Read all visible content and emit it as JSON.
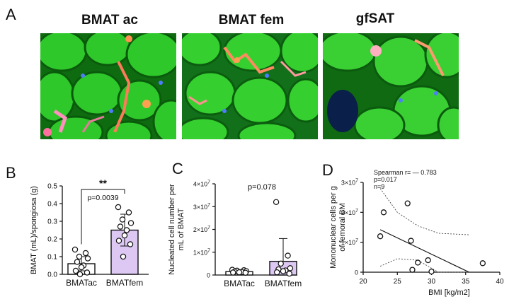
{
  "figure": {
    "panel_a": {
      "letter": "A",
      "images": [
        {
          "title": "BMAT ac"
        },
        {
          "title": "BMAT fem"
        },
        {
          "title": "gfSAT"
        }
      ]
    },
    "panel_b": {
      "letter": "B"
    },
    "panel_c": {
      "letter": "C"
    },
    "panel_d": {
      "letter": "D"
    }
  },
  "chart_data": [
    {
      "type": "bar",
      "panel": "B",
      "categories": [
        "BMATac",
        "BMATfem"
      ],
      "values": [
        0.06,
        0.25
      ],
      "error_sd": [
        0.04,
        0.09
      ],
      "points": [
        [
          0.14,
          0.12,
          0.1,
          0.09,
          0.07,
          0.05,
          0.04,
          0.02,
          0.01,
          0.0
        ],
        [
          0.38,
          0.35,
          0.31,
          0.29,
          0.27,
          0.25,
          0.22,
          0.19,
          0.17,
          0.1
        ]
      ],
      "ylabel": "BMAT (mL)/spongiosa (g)",
      "ylim": [
        0,
        0.5
      ],
      "yticks": [
        "0.0",
        "0.1",
        "0.2",
        "0.3",
        "0.4",
        "0.5"
      ],
      "annotation": "**",
      "pvalue": "p=0.0039",
      "colors": {
        "BMATac": "#ffffff",
        "BMATfem": "#dcc8f3"
      }
    },
    {
      "type": "bar",
      "panel": "C",
      "categories": [
        "BMATac",
        "BMATfem"
      ],
      "values": [
        1500000,
        6000000
      ],
      "error_sd": [
        600000,
        10000000
      ],
      "points": [
        [
          2300000,
          2100000,
          1900000,
          1700000,
          1500000,
          1300000,
          1200000,
          1100000,
          1000000
        ],
        [
          32000000,
          8500000,
          5000000,
          3000000,
          2500000,
          2000000,
          1700000,
          1200000,
          600000
        ]
      ],
      "ylabel": "Nucleated cell number per mL of BMAT",
      "ylim": [
        0,
        40000000
      ],
      "yticks": [
        "0",
        "1×10",
        "2×10",
        "3×10",
        "4×10"
      ],
      "ytick_exp": "7",
      "pvalue": "p=0.078",
      "colors": {
        "BMATac": "#ffffff",
        "BMATfem": "#dcc8f3"
      }
    },
    {
      "type": "scatter",
      "panel": "D",
      "x": [
        22.5,
        23.0,
        26.5,
        27.0,
        27.2,
        28.0,
        29.5,
        30.0,
        37.5
      ],
      "y": [
        12000000,
        20000000,
        23000000,
        10500000,
        800000,
        3200000,
        4000000,
        200000,
        3000000
      ],
      "fit": {
        "x": [
          22.5,
          35.5
        ],
        "y": [
          14200000,
          0
        ]
      },
      "ci_upper": {
        "x": [
          22.5,
          25,
          28,
          31,
          35.5
        ],
        "y": [
          28000000,
          20000000,
          15500000,
          13000000,
          12500000
        ]
      },
      "ci_lower": {
        "x": [
          22.5,
          25,
          28,
          31,
          35.5
        ],
        "y": [
          2000000,
          4500000,
          4000000,
          0,
          0
        ]
      },
      "xlabel": "BMI [kg/m2]",
      "ylabel": "Mononuclear cells per g of femoral BM",
      "xlim": [
        20,
        40
      ],
      "ylim": [
        0,
        30000000
      ],
      "xticks": [
        "20",
        "25",
        "30",
        "35",
        "40"
      ],
      "yticks": [
        "0",
        "1×10",
        "2×10",
        "3×10"
      ],
      "ytick_exp": "7",
      "stats": [
        "Spearman r= — 0.783",
        "p=0.017",
        "n=9"
      ]
    }
  ]
}
